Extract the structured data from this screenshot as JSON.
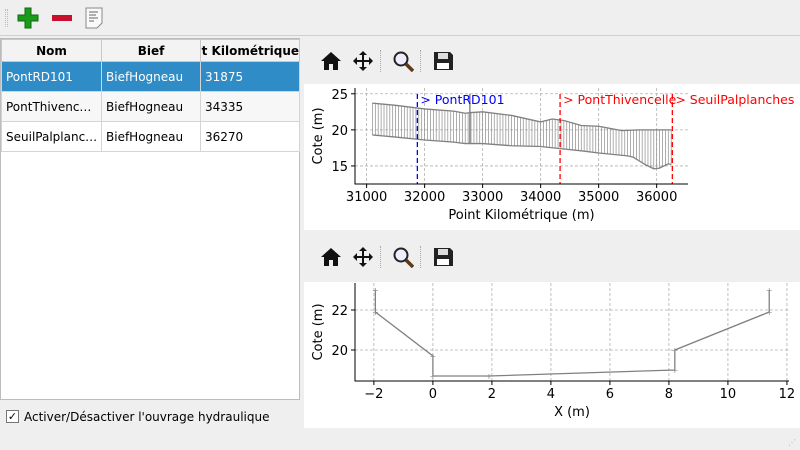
{
  "toolbar": {
    "icons": [
      "add-icon",
      "remove-icon",
      "document-icon"
    ]
  },
  "table": {
    "columns": [
      "Nom",
      "Bief",
      "Point Kilométrique"
    ],
    "rows": [
      [
        "PontRD101",
        "BiefHogneau",
        "31875"
      ],
      [
        "PontThivencelle",
        "BiefHogneau",
        "34335"
      ],
      [
        "SeuilPalplanches",
        "BiefHogneau",
        "36270"
      ]
    ],
    "display_rows": [
      [
        "PontRD101",
        "BiefHogneau",
        "31875"
      ],
      [
        "PontThivenc…",
        "BiefHogneau",
        "34335"
      ],
      [
        "SeuilPalplanc…",
        "BiefHogneau",
        "36270"
      ]
    ],
    "selected_index": 0
  },
  "checkbox": {
    "label": "Activer/Désactiver l'ouvrage hydraulique",
    "checked": true
  },
  "plot_toolbar": {
    "icons": [
      "home-icon",
      "pan-icon",
      "zoom-icon",
      "save-icon"
    ]
  },
  "colors": {
    "selection": "#308cc6",
    "selected_marker": "#0000ff",
    "other_marker": "#ff0000",
    "profile": "#808080"
  },
  "chart_data": [
    {
      "type": "line",
      "xlabel": "Point Kilométrique (m)",
      "ylabel": "Cote (m)",
      "xlim": [
        30800,
        36540
      ],
      "ylim": [
        12.5,
        25.8
      ],
      "xticks": [
        31000,
        32000,
        33000,
        34000,
        35000,
        36000
      ],
      "yticks": [
        15,
        20,
        25
      ],
      "grid": true,
      "series": [
        {
          "role": "bank_top",
          "x": [
            31100,
            31500,
            32000,
            32500,
            32700,
            32800,
            33000,
            33500,
            34000,
            34200,
            34400,
            34700,
            35000,
            35400,
            35700,
            36000,
            36250
          ],
          "y": [
            23.7,
            23.4,
            22.9,
            22.6,
            22.3,
            22.4,
            22.5,
            22.0,
            21.1,
            21.5,
            21.3,
            20.6,
            20.5,
            19.9,
            20.0,
            20.0,
            20.0
          ]
        },
        {
          "role": "bed_min",
          "x": [
            31100,
            31500,
            32000,
            32500,
            32700,
            33000,
            33500,
            34000,
            34335,
            34700,
            35000,
            35500,
            35600,
            35800,
            35950,
            36050,
            36200,
            36250
          ],
          "y": [
            19.3,
            19.0,
            18.6,
            18.3,
            18.1,
            18.1,
            17.8,
            17.7,
            17.4,
            17.1,
            16.8,
            16.4,
            16.2,
            15.2,
            14.6,
            14.7,
            15.3,
            15.2
          ]
        }
      ],
      "markers": [
        {
          "label": "> PontRD101",
          "x": 31875,
          "selected": true
        },
        {
          "label": "> PontThivencelle",
          "x": 34335,
          "selected": false
        },
        {
          "label": "> SeuilPalplanches",
          "x": 36270,
          "selected": false
        }
      ]
    },
    {
      "type": "line",
      "xlabel": "X (m)",
      "ylabel": "Cote (m)",
      "xlim": [
        -2.64,
        12.07
      ],
      "ylim": [
        18.45,
        23.35
      ],
      "xticks": [
        -2,
        0,
        2,
        4,
        6,
        8,
        10,
        12
      ],
      "yticks": [
        20,
        22
      ],
      "grid": true,
      "series": [
        {
          "x": [
            -1.95,
            -1.95,
            0,
            0,
            1.9,
            8.2,
            8.2,
            11.4,
            11.4
          ],
          "y": [
            23,
            21.9,
            19.7,
            18.7,
            18.7,
            19,
            20,
            21.9,
            23
          ]
        }
      ]
    }
  ]
}
